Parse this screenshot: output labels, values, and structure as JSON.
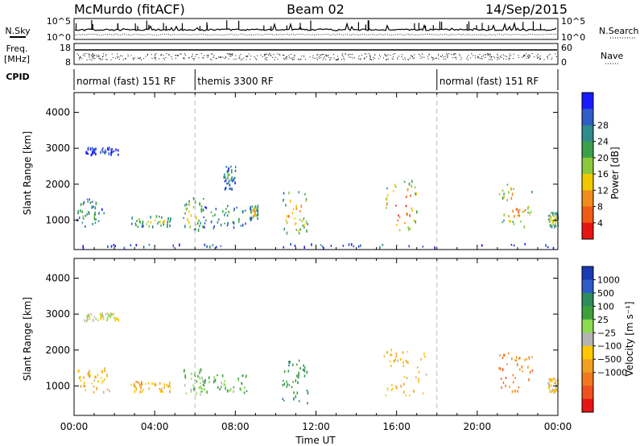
{
  "header": {
    "station": "McMurdo (fitACF)",
    "beam": "Beam 02",
    "date": "14/Sep/2015"
  },
  "top_panels": {
    "nsky_label": "N.Sky",
    "nsearch_label": "N.Search",
    "freq_label": "Freq.",
    "freq_unit": "[MHz]",
    "nave_label": "Nave",
    "cpid_label": "CPID",
    "nsky_ticks": [
      "10^5",
      "10^0"
    ],
    "nsearch_ticks": [
      "10^5",
      "10^0"
    ],
    "freq_ticks": [
      "18",
      "8"
    ],
    "nave_ticks": [
      "60",
      "0"
    ],
    "cpid_segments": [
      {
        "label": "normal (fast) 151 RF",
        "start_hr": 0,
        "end_hr": 6
      },
      {
        "label": "themis 3300 RF",
        "start_hr": 6,
        "end_hr": 18
      },
      {
        "label": "normal (fast) 151 RF",
        "start_hr": 18,
        "end_hr": 24
      }
    ]
  },
  "chart_data": [
    {
      "type": "heatmap",
      "name": "power-panel",
      "ylabel": "Slant Range [km]",
      "xlim": [
        0,
        24
      ],
      "ylim": [
        180,
        4550
      ],
      "yticks": [
        1000,
        2000,
        3000,
        4000
      ],
      "colorbar_label": "Power [dB]",
      "colorbar_ticks": [
        "4",
        "8",
        "12",
        "16",
        "20",
        "24",
        "28"
      ],
      "colorbar_colors": [
        "#1a1aff",
        "#2e5cc8",
        "#2e8c8c",
        "#3aa04a",
        "#8cc83c",
        "#f0c800",
        "#f08c1e",
        "#f05a14",
        "#e81414"
      ],
      "echo_regions": [
        {
          "t_start": 0.0,
          "t_end": 1.5,
          "r_low": 800,
          "r_high": 1600,
          "intensity": 0.35
        },
        {
          "t_start": 0.5,
          "t_end": 2.2,
          "r_low": 2800,
          "r_high": 3000,
          "intensity": 0.1
        },
        {
          "t_start": 2.8,
          "t_end": 4.8,
          "r_low": 800,
          "r_high": 1100,
          "intensity": 0.55
        },
        {
          "t_start": 5.4,
          "t_end": 6.4,
          "r_low": 700,
          "r_high": 1600,
          "intensity": 0.6
        },
        {
          "t_start": 6.4,
          "t_end": 8.6,
          "r_low": 750,
          "r_high": 1400,
          "intensity": 0.35
        },
        {
          "t_start": 8.7,
          "t_end": 9.1,
          "r_low": 1000,
          "r_high": 1400,
          "intensity": 0.6
        },
        {
          "t_start": 7.4,
          "t_end": 8.0,
          "r_low": 1800,
          "r_high": 2500,
          "intensity": 0.3
        },
        {
          "t_start": 10.3,
          "t_end": 11.6,
          "r_low": 600,
          "r_high": 1800,
          "intensity": 0.7
        },
        {
          "t_start": 15.3,
          "t_end": 17.0,
          "r_low": 700,
          "r_high": 2100,
          "intensity": 0.85
        },
        {
          "t_start": 21.0,
          "t_end": 22.7,
          "r_low": 800,
          "r_high": 2000,
          "intensity": 0.75
        },
        {
          "t_start": 23.5,
          "t_end": 24.0,
          "r_low": 800,
          "r_high": 1200,
          "intensity": 0.6
        },
        {
          "t_start": 0.0,
          "t_end": 24.0,
          "r_low": 200,
          "r_high": 320,
          "intensity": 0.15
        }
      ]
    },
    {
      "type": "heatmap",
      "name": "velocity-panel",
      "xlabel": "Time UT",
      "ylabel": "Slant Range [km]",
      "xlim": [
        0,
        24
      ],
      "ylim": [
        180,
        4550
      ],
      "yticks": [
        1000,
        2000,
        3000,
        4000
      ],
      "xticks": [
        "00:00",
        "04:00",
        "08:00",
        "12:00",
        "16:00",
        "20:00",
        "00:00"
      ],
      "colorbar_label": "Velocity [m s⁻¹]",
      "colorbar_ticks": [
        "1000",
        "500",
        "100",
        "25",
        "−25",
        "−100",
        "−500",
        "−1000"
      ],
      "colorbar_colors": [
        "#1a3ab4",
        "#2e5cc8",
        "#2e8c5a",
        "#3ca03c",
        "#8cdc50",
        "#b4b4b4",
        "#ffc800",
        "#f0a01e",
        "#f0781e",
        "#f0501e",
        "#e81414"
      ],
      "echo_regions": [
        {
          "t_start": 0.0,
          "t_end": 1.8,
          "r_low": 800,
          "r_high": 1500,
          "velocity": -200
        },
        {
          "t_start": 0.5,
          "t_end": 2.2,
          "r_low": 2800,
          "r_high": 3000,
          "velocity": 0
        },
        {
          "t_start": 2.8,
          "t_end": 4.8,
          "r_low": 800,
          "r_high": 1100,
          "velocity": -300
        },
        {
          "t_start": 5.4,
          "t_end": 6.4,
          "r_low": 700,
          "r_high": 1500,
          "velocity": 150
        },
        {
          "t_start": 6.4,
          "t_end": 8.6,
          "r_low": 750,
          "r_high": 1300,
          "velocity": 300
        },
        {
          "t_start": 10.3,
          "t_end": 11.6,
          "r_low": 500,
          "r_high": 1700,
          "velocity": 450
        },
        {
          "t_start": 15.3,
          "t_end": 17.5,
          "r_low": 700,
          "r_high": 2000,
          "velocity": -250
        },
        {
          "t_start": 21.0,
          "t_end": 22.8,
          "r_low": 800,
          "r_high": 1900,
          "velocity": -500
        },
        {
          "t_start": 23.5,
          "t_end": 24.0,
          "r_low": 800,
          "r_high": 1200,
          "velocity": -150
        }
      ]
    }
  ]
}
